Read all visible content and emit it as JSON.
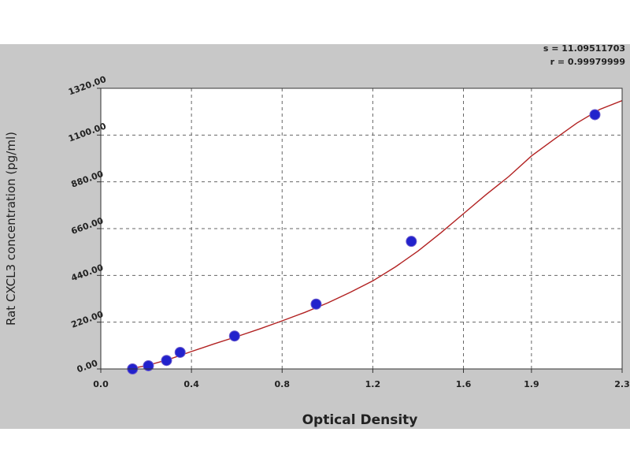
{
  "stats": {
    "s_text": "s = 11.09511703",
    "r_text": "r = 0.99979999"
  },
  "chart_data": {
    "type": "scatter",
    "xlabel": "Optical Density",
    "ylabel": "Rat CXCL3 concentration (pg/ml)",
    "xlim": [
      0.0,
      2.3
    ],
    "ylim": [
      0,
      1320
    ],
    "x_ticks": [
      "0.0",
      "0.4",
      "0.8",
      "1.2",
      "1.6",
      "1.9",
      "2.3"
    ],
    "x_tick_values": [
      0.0,
      0.4,
      0.8,
      1.2,
      1.6,
      1.9,
      2.3
    ],
    "y_ticks": [
      "0.00",
      "220.00",
      "440.00",
      "660.00",
      "880.00",
      "1100.00",
      "1320.00"
    ],
    "y_tick_values": [
      0,
      220,
      440,
      660,
      880,
      1100,
      1320
    ],
    "grid": true,
    "points": {
      "x": [
        0.14,
        0.21,
        0.29,
        0.35,
        0.59,
        0.95,
        1.37,
        2.18
      ],
      "y": [
        0,
        15,
        40,
        78,
        155,
        305,
        600,
        1196
      ]
    },
    "fit_curve": {
      "x": [
        0.1,
        0.2,
        0.3,
        0.4,
        0.5,
        0.6,
        0.7,
        0.8,
        0.9,
        1.0,
        1.1,
        1.2,
        1.3,
        1.4,
        1.5,
        1.6,
        1.7,
        1.8,
        1.9,
        2.0,
        2.1,
        2.2,
        2.3
      ],
      "y": [
        -5,
        15,
        45,
        82,
        118,
        152,
        188,
        226,
        266,
        310,
        360,
        414,
        480,
        555,
        640,
        730,
        820,
        905,
        1002,
        1080,
        1156,
        1220,
        1262
      ]
    },
    "colors": {
      "points": "#2222cc",
      "curve": "#b22222",
      "grid": "#666666",
      "plot_bg": "#ffffff",
      "frame_bg": "#c8c8c8"
    }
  }
}
